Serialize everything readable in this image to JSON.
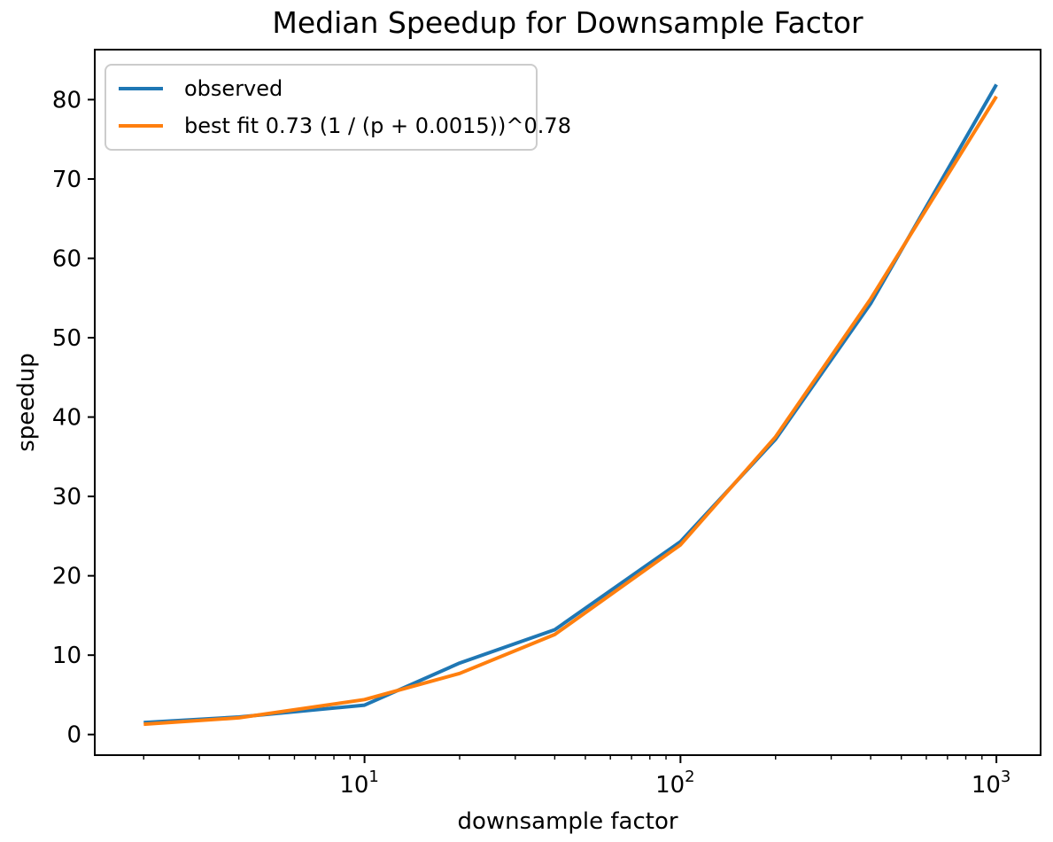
{
  "figure": {
    "title": "Median Speedup for Downsample Factor",
    "xlabel": "downsample factor",
    "ylabel": "speedup"
  },
  "legend": {
    "position": "upper left",
    "entries": [
      {
        "label": "observed",
        "color": "#1f77b4"
      },
      {
        "label": "best fit 0.73 (1 / (p + 0.0015))^0.78",
        "color": "#ff7f0e"
      }
    ]
  },
  "chart_data": {
    "type": "line",
    "title": "Median Speedup for Downsample Factor",
    "xlabel": "downsample factor",
    "ylabel": "speedup",
    "x_scale": "log",
    "grid": false,
    "legend_position": "upper left",
    "background": "#ffffff",
    "axis_color": "#000000",
    "x": [
      2,
      4,
      10,
      20,
      40,
      100,
      200,
      400,
      1000
    ],
    "series": [
      {
        "name": "observed",
        "color": "#1f77b4",
        "values": [
          1.5,
          2.2,
          3.7,
          9.0,
          13.2,
          24.3,
          37.2,
          54.3,
          81.9
        ]
      },
      {
        "name": "best fit 0.73 (1 / (p + 0.0015))^0.78",
        "color": "#ff7f0e",
        "values": [
          1.3,
          2.1,
          4.4,
          7.7,
          12.6,
          23.9,
          37.5,
          54.9,
          80.4
        ]
      }
    ],
    "y_ticks": [
      0,
      10,
      20,
      30,
      40,
      50,
      60,
      70,
      80
    ],
    "x_ticks": [
      {
        "value": 10,
        "base": "10",
        "exp": "1"
      },
      {
        "value": 100,
        "base": "10",
        "exp": "2"
      },
      {
        "value": 1000,
        "base": "10",
        "exp": "3"
      }
    ],
    "xlim": [
      1.4,
      1380
    ],
    "ylim": [
      -2.6,
      86.3
    ]
  }
}
